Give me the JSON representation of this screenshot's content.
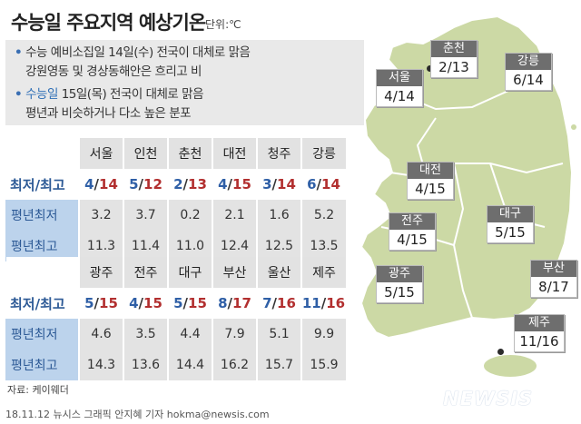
{
  "header": {
    "title": "수능일 주요지역 예상기온",
    "unit": "단위:℃"
  },
  "notes": [
    {
      "bullet": "•",
      "label": "수능 예비소집일",
      "text": " 14일(수) 전국이 대체로 맑음",
      "line2": "강원영동 및 경상동해안은 흐리고 비"
    },
    {
      "bullet": "•",
      "label": "수능일",
      "text": " 15일(목) 전국이 대체로 맑음",
      "line2": "평년과 비슷하거나 다소 높은 분포"
    }
  ],
  "row_labels": {
    "minmax": "최저/최고",
    "avg_min": "평년최저",
    "avg_max": "평년최고"
  },
  "table1": {
    "cities": [
      "서울",
      "인천",
      "춘천",
      "대전",
      "청주",
      "강릉"
    ],
    "min": [
      "4",
      "5",
      "2",
      "4",
      "3",
      "6"
    ],
    "max": [
      "14",
      "12",
      "13",
      "15",
      "14",
      "14"
    ],
    "avg_min": [
      "3.2",
      "3.7",
      "0.2",
      "2.1",
      "1.6",
      "5.2"
    ],
    "avg_max": [
      "11.3",
      "11.4",
      "11.0",
      "12.4",
      "12.5",
      "13.5"
    ]
  },
  "table2": {
    "cities": [
      "광주",
      "전주",
      "대구",
      "부산",
      "울산",
      "제주"
    ],
    "min": [
      "5",
      "4",
      "5",
      "8",
      "7",
      "11"
    ],
    "max": [
      "15",
      "15",
      "15",
      "17",
      "16",
      "16"
    ],
    "avg_min": [
      "4.6",
      "3.5",
      "4.4",
      "7.9",
      "5.1",
      "9.9"
    ],
    "avg_max": [
      "14.3",
      "13.6",
      "14.4",
      "16.2",
      "15.7",
      "15.9"
    ]
  },
  "map_labels": [
    {
      "name": "춘천",
      "temp": "2/13"
    },
    {
      "name": "서울",
      "temp": "4/14"
    },
    {
      "name": "강릉",
      "temp": "6/14"
    },
    {
      "name": "대전",
      "temp": "4/15"
    },
    {
      "name": "전주",
      "temp": "4/15"
    },
    {
      "name": "대구",
      "temp": "5/15"
    },
    {
      "name": "광주",
      "temp": "5/15"
    },
    {
      "name": "부산",
      "temp": "8/17"
    },
    {
      "name": "제주",
      "temp": "11/16"
    }
  ],
  "source": "자료: 케이웨더",
  "credit": "18.11.12 뉴시스 그래픽 안지혜 기자 hokma@newsis.com",
  "logo": "NEWSIS",
  "colors": {
    "land": "#ccd9a5",
    "land_stroke": "#ffffff",
    "lo": "#2f5fa6",
    "hi": "#b22f2f",
    "avg_bg": "#bcd3ec"
  }
}
